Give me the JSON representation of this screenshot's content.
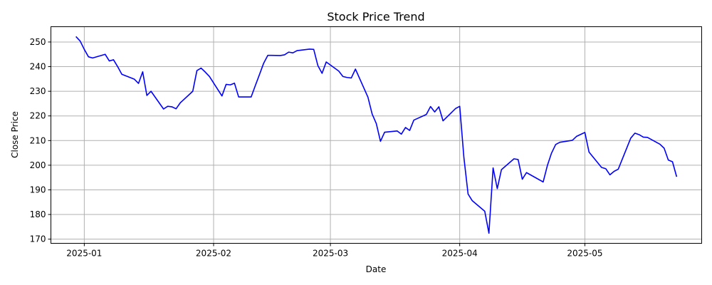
{
  "chart_data": {
    "type": "line",
    "title": "Stock Price Trend",
    "xlabel": "Date",
    "ylabel": "Close Price",
    "grid": true,
    "line_color": "#0000ff",
    "xlim": [
      "2024-12-24",
      "2025-05-29"
    ],
    "ylim": [
      168.3,
      256.2
    ],
    "x_ticks": [
      {
        "date": "2025-01-01",
        "label": "2025-01"
      },
      {
        "date": "2025-02-01",
        "label": "2025-02"
      },
      {
        "date": "2025-03-01",
        "label": "2025-03"
      },
      {
        "date": "2025-04-01",
        "label": "2025-04"
      },
      {
        "date": "2025-05-01",
        "label": "2025-05"
      }
    ],
    "y_ticks": [
      170,
      180,
      190,
      200,
      210,
      220,
      230,
      240,
      250
    ],
    "series": [
      {
        "x": [
          "2024-12-30",
          "2024-12-31",
          "2025-01-01",
          "2025-01-02",
          "2025-01-03",
          "2025-01-06",
          "2025-01-07",
          "2025-01-08",
          "2025-01-09",
          "2025-01-10",
          "2025-01-13",
          "2025-01-14",
          "2025-01-15",
          "2025-01-16",
          "2025-01-17",
          "2025-01-20",
          "2025-01-21",
          "2025-01-22",
          "2025-01-23",
          "2025-01-24",
          "2025-01-27",
          "2025-01-28",
          "2025-01-29",
          "2025-01-30",
          "2025-01-31",
          "2025-02-03",
          "2025-02-04",
          "2025-02-05",
          "2025-02-06",
          "2025-02-07",
          "2025-02-10",
          "2025-02-11",
          "2025-02-12",
          "2025-02-13",
          "2025-02-14",
          "2025-02-17",
          "2025-02-18",
          "2025-02-19",
          "2025-02-20",
          "2025-02-21",
          "2025-02-24",
          "2025-02-25",
          "2025-02-26",
          "2025-02-27",
          "2025-02-28",
          "2025-03-03",
          "2025-03-04",
          "2025-03-05",
          "2025-03-06",
          "2025-03-07",
          "2025-03-10",
          "2025-03-11",
          "2025-03-12",
          "2025-03-13",
          "2025-03-14",
          "2025-03-17",
          "2025-03-18",
          "2025-03-19",
          "2025-03-20",
          "2025-03-21",
          "2025-03-24",
          "2025-03-25",
          "2025-03-26",
          "2025-03-27",
          "2025-03-28",
          "2025-03-31",
          "2025-04-01",
          "2025-04-02",
          "2025-04-03",
          "2025-04-04",
          "2025-04-07",
          "2025-04-08",
          "2025-04-09",
          "2025-04-10",
          "2025-04-11",
          "2025-04-14",
          "2025-04-15",
          "2025-04-16",
          "2025-04-17",
          "2025-04-21",
          "2025-04-22",
          "2025-04-23",
          "2025-04-24",
          "2025-04-25",
          "2025-04-28",
          "2025-04-29",
          "2025-04-30",
          "2025-05-01",
          "2025-05-02",
          "2025-05-05",
          "2025-05-06",
          "2025-05-07",
          "2025-05-08",
          "2025-05-09",
          "2025-05-12",
          "2025-05-13",
          "2025-05-14",
          "2025-05-15",
          "2025-05-16",
          "2025-05-19",
          "2025-05-20",
          "2025-05-21",
          "2025-05-22",
          "2025-05-23"
        ],
        "y": [
          252.2,
          250.4,
          247.0,
          244.0,
          243.5,
          245.0,
          242.3,
          242.8,
          240.0,
          236.9,
          234.9,
          233.2,
          237.9,
          228.3,
          230.0,
          222.8,
          223.9,
          223.7,
          222.9,
          225.3,
          230.0,
          238.4,
          239.4,
          237.8,
          236.0,
          228.1,
          232.8,
          232.6,
          233.3,
          227.7,
          227.7,
          232.3,
          236.8,
          241.4,
          244.6,
          244.5,
          244.8,
          245.9,
          245.6,
          246.5,
          247.1,
          247.0,
          240.4,
          237.3,
          241.9,
          238.2,
          236.0,
          235.6,
          235.4,
          239.0,
          227.6,
          220.8,
          216.9,
          209.7,
          213.4,
          213.9,
          212.6,
          215.3,
          214.1,
          218.3,
          220.6,
          223.8,
          221.6,
          223.7,
          218.0,
          223.0,
          223.9,
          203.1,
          188.3,
          185.6,
          181.3,
          172.4,
          198.9,
          190.5,
          198.2,
          202.6,
          202.3,
          194.3,
          197.0,
          193.2,
          199.8,
          204.9,
          208.4,
          209.3,
          210.1,
          211.7,
          212.5,
          213.3,
          205.3,
          199.1,
          198.6,
          196.1,
          197.5,
          198.4,
          211.0,
          213.0,
          212.4,
          211.4,
          211.3,
          208.5,
          206.9,
          202.1,
          201.4,
          195.3
        ]
      }
    ]
  }
}
